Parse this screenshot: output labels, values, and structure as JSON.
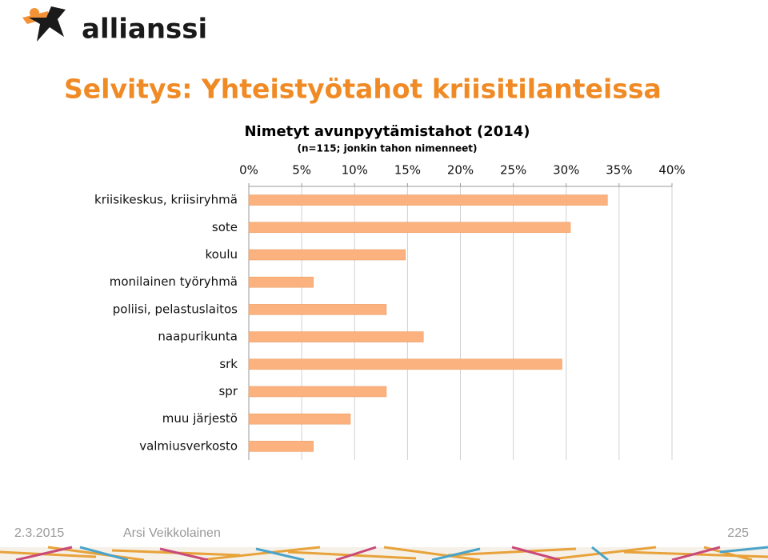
{
  "slide": {
    "logo": "allianssi",
    "title": "Selvitys: Yhteistyötahot kriisitilanteissa",
    "date": "2.3.2015",
    "author": "Arsi Veikkolainen",
    "page": "225"
  },
  "chart_data": {
    "type": "hbar",
    "title": "Nimetyt avunpyytämistahot (2014)",
    "subtitle": "(n=115; jonkin tahon nimenneet)",
    "categories": [
      "kriisikeskus, kriisiryhmä",
      "sote",
      "koulu",
      "monilainen työryhmä",
      "poliisi, pelastuslaitos",
      "naapurikunta",
      "srk",
      "spr",
      "muu järjestö",
      "valmiusverkosto"
    ],
    "values": [
      33.9,
      30.4,
      14.8,
      6.1,
      13.0,
      16.5,
      29.6,
      13.0,
      9.6,
      6.1
    ],
    "color": "#fbb27e",
    "xlim": [
      0,
      40
    ],
    "xticks": [
      {
        "value": 0,
        "label": "0%"
      },
      {
        "value": 5,
        "label": "5%"
      },
      {
        "value": 10,
        "label": "10%"
      },
      {
        "value": 15,
        "label": "15%"
      },
      {
        "value": 20,
        "label": "20%"
      },
      {
        "value": 25,
        "label": "25%"
      },
      {
        "value": 30,
        "label": "30%"
      },
      {
        "value": 35,
        "label": "35%"
      },
      {
        "value": 40,
        "label": "40%"
      }
    ],
    "grid": true
  }
}
